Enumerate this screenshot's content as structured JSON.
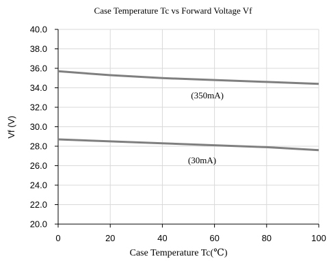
{
  "chart_data": {
    "type": "line",
    "title": "Case Temperature Tc vs Forward Voltage Vf",
    "xlabel": "Case Temperature Tc(℃)",
    "ylabel": "Vf (V)",
    "xlim": [
      0,
      100
    ],
    "ylim": [
      20.0,
      40.0
    ],
    "x_ticks": [
      "0",
      "20",
      "40",
      "60",
      "80",
      "100"
    ],
    "y_ticks": [
      "20.0",
      "22.0",
      "24.0",
      "26.0",
      "28.0",
      "30.0",
      "32.0",
      "34.0",
      "36.0",
      "38.0",
      "40.0"
    ],
    "grid": true,
    "series": [
      {
        "name": "(350mA)",
        "x": [
          0,
          20,
          40,
          60,
          80,
          100
        ],
        "values": [
          35.7,
          35.3,
          35.0,
          34.8,
          34.6,
          34.4
        ]
      },
      {
        "name": "(30mA)",
        "x": [
          0,
          20,
          40,
          60,
          80,
          100
        ],
        "values": [
          28.7,
          28.5,
          28.3,
          28.1,
          27.9,
          27.6
        ]
      }
    ],
    "colors": {
      "line": "#7f7f7f",
      "grid": "#d9d9d9",
      "axis": "#000000"
    }
  }
}
